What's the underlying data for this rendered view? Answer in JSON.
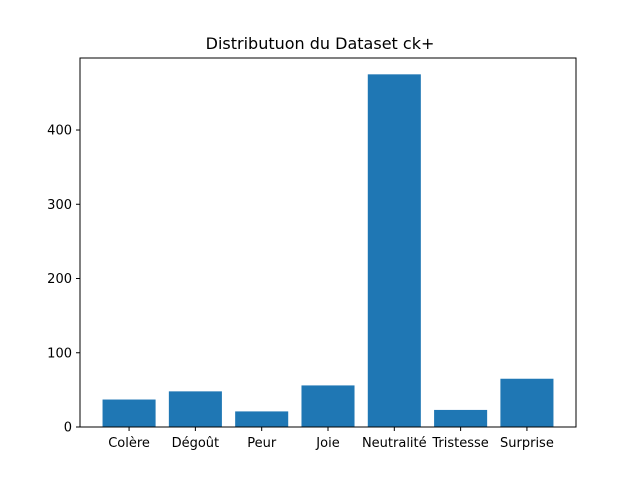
{
  "chart_data": {
    "type": "bar",
    "title": "Distributuon du Dataset ck+",
    "xlabel": "",
    "ylabel": "",
    "categories": [
      "Colère",
      "Dégoût",
      "Peur",
      "Joie",
      "Neutralité",
      "Tristesse",
      "Surprise"
    ],
    "values": [
      37,
      48,
      21,
      56,
      475,
      23,
      65
    ],
    "ylim": [
      0,
      497
    ],
    "yticks": [
      0,
      100,
      200,
      300,
      400
    ],
    "grid": false,
    "bar_color": "#1f77b4"
  }
}
